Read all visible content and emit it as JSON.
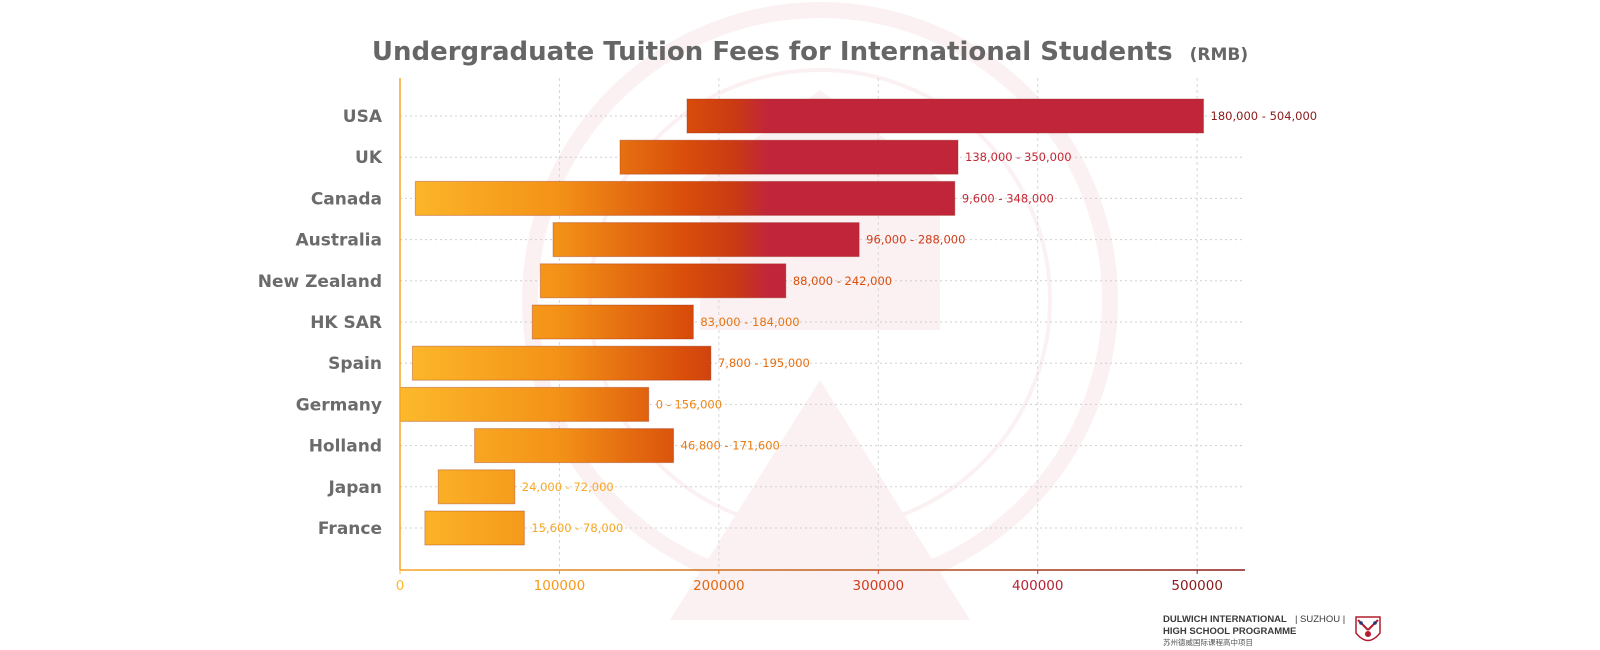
{
  "chart_data": {
    "type": "bar",
    "title": "Undergraduate Tuition Fees for International Students",
    "title_unit": "(RMB)",
    "xlabel": "",
    "ylabel": "",
    "xlim": [
      0,
      530000
    ],
    "xticks": [
      0,
      100000,
      200000,
      300000,
      400000,
      500000
    ],
    "xtick_labels": [
      "0",
      "100000",
      "200000",
      "300000",
      "400000",
      "500000"
    ],
    "grid": true,
    "orientation": "horizontal-range",
    "series": [
      {
        "categories": [
          "USA",
          "UK",
          "Canada",
          "Australia",
          "New Zealand",
          "HK SAR",
          "Spain",
          "Germany",
          "Holland",
          "Japan",
          "France"
        ],
        "min": [
          180000,
          138000,
          9600,
          96000,
          88000,
          83000,
          7800,
          0,
          46800,
          24000,
          15600
        ],
        "max": [
          504000,
          350000,
          348000,
          288000,
          242000,
          184000,
          195000,
          156000,
          171600,
          72000,
          78000
        ],
        "labels": [
          "180,000 - 504,000",
          "138,000 - 350,000",
          "9,600 - 348,000",
          "96,000 - 288,000",
          "88,000 - 242,000",
          "83,000 - 184,000",
          "7,800 - 195,000",
          "0 - 156,000",
          "46,800 - 171,600",
          "24,000 - 72,000",
          "15,600 - 78,000"
        ]
      }
    ],
    "colors": {
      "low": "#fdb92b",
      "mid": "#f39117",
      "high": "#d84c0a",
      "top": "#c1253a"
    }
  },
  "branding": {
    "line1": "DULWICH INTERNATIONAL",
    "line1_suffix": "| SUZHOU |",
    "line2": "HIGH SCHOOL PROGRAMME",
    "line3": "苏州德威国际课程高中项目",
    "crest": "school-crest-icon"
  }
}
